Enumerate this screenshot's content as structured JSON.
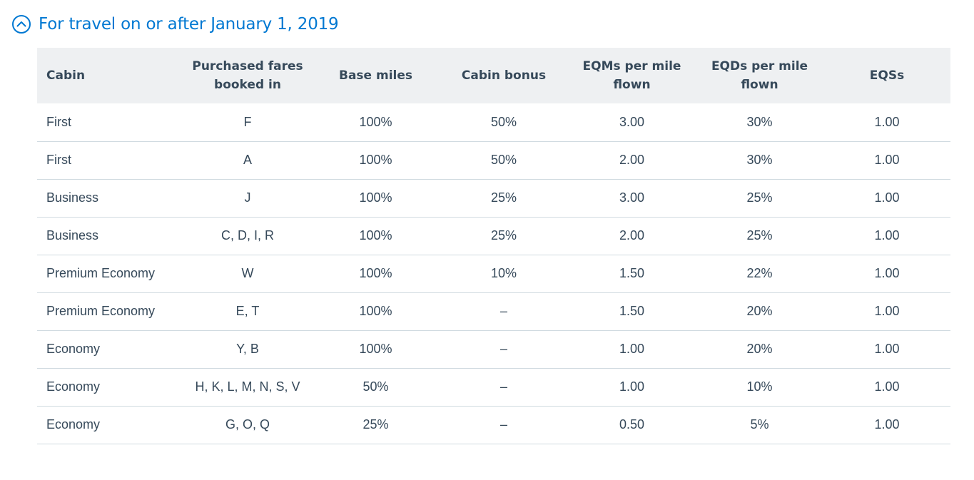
{
  "section": {
    "title": "For travel on or after January 1, 2019",
    "icon": "chevron-up-circle-icon",
    "accent_color": "#0078d2"
  },
  "table": {
    "headers": {
      "cabin": "Cabin",
      "fares": "Purchased fares booked in",
      "base": "Base miles",
      "bonus": "Cabin bonus",
      "eqm": "EQMs per mile flown",
      "eqd": "EQDs per mile flown",
      "eqs": "EQSs"
    },
    "rows": [
      {
        "cabin": "First",
        "fares": "F",
        "base": "100%",
        "bonus": "50%",
        "eqm": "3.00",
        "eqd": "30%",
        "eqs": "1.00"
      },
      {
        "cabin": "First",
        "fares": "A",
        "base": "100%",
        "bonus": "50%",
        "eqm": "2.00",
        "eqd": "30%",
        "eqs": "1.00"
      },
      {
        "cabin": "Business",
        "fares": "J",
        "base": "100%",
        "bonus": "25%",
        "eqm": "3.00",
        "eqd": "25%",
        "eqs": "1.00"
      },
      {
        "cabin": "Business",
        "fares": "C, D, I, R",
        "base": "100%",
        "bonus": "25%",
        "eqm": "2.00",
        "eqd": "25%",
        "eqs": "1.00"
      },
      {
        "cabin": "Premium Economy",
        "fares": "W",
        "base": "100%",
        "bonus": "10%",
        "eqm": "1.50",
        "eqd": "22%",
        "eqs": "1.00"
      },
      {
        "cabin": "Premium Economy",
        "fares": "E, T",
        "base": "100%",
        "bonus": "–",
        "eqm": "1.50",
        "eqd": "20%",
        "eqs": "1.00"
      },
      {
        "cabin": "Economy",
        "fares": "Y, B",
        "base": "100%",
        "bonus": "–",
        "eqm": "1.00",
        "eqd": "20%",
        "eqs": "1.00"
      },
      {
        "cabin": "Economy",
        "fares": "H, K, L, M, N, S, V",
        "base": "50%",
        "bonus": "–",
        "eqm": "1.00",
        "eqd": "10%",
        "eqs": "1.00"
      },
      {
        "cabin": "Economy",
        "fares": "G, O, Q",
        "base": "25%",
        "bonus": "–",
        "eqm": "0.50",
        "eqd": "5%",
        "eqs": "1.00"
      }
    ]
  }
}
